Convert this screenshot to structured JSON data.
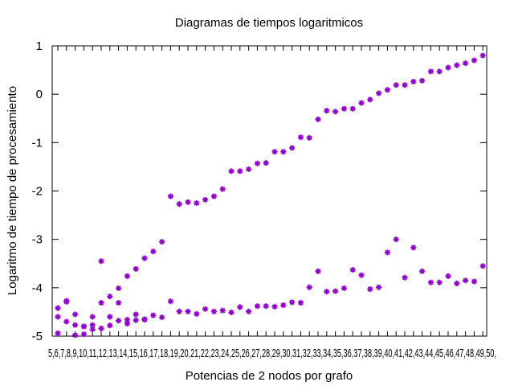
{
  "chart_data": {
    "type": "scatter",
    "title": "Diagramas de tiempos logaritmicos",
    "xlabel": "Potencias de 2 nodos por grafo",
    "ylabel": "Logaritmo de tiempo de procesamiento",
    "ylim": [
      -5,
      1
    ],
    "yticks": [
      -5,
      -4,
      -3,
      -2,
      -1,
      0,
      1
    ],
    "grid": false,
    "legend": "none",
    "color": "#9400d3",
    "xtick_text": "5,6,7,8,9,10,11,12,13,14,15,16,17,18,19,20,21,22,23,24,25,26,27,28,29,30,31,32,33,34,35,36,37,38,39,40,41,42,43,44,45,46,47,48,49,50,",
    "series": [
      {
        "values": [
          -4.42,
          -4.27,
          -4.55,
          -4.8,
          -4.6,
          -3.45,
          -4.18,
          -4.01,
          -3.76,
          -3.61,
          -3.39,
          -3.25,
          -3.05,
          -2.11,
          -2.27,
          -2.23,
          -2.25,
          -2.18,
          -2.11,
          -1.96,
          -1.59,
          -1.59,
          -1.55,
          -1.43,
          -1.42,
          -1.19,
          -1.19,
          -1.11,
          -0.89,
          -0.9,
          -0.52,
          -0.34,
          -0.36,
          -0.3,
          -0.3,
          -0.18,
          -0.11,
          0.02,
          0.09,
          0.19,
          0.19,
          0.26,
          0.28,
          0.47,
          0.47,
          0.55,
          0.6,
          0.64,
          0.7,
          0.8
        ]
      },
      {
        "values": [
          -4.6,
          -4.7,
          -4.77,
          -4.8,
          -4.77,
          -4.31,
          -4.6,
          -4.31,
          -4.66,
          -4.55,
          -4.66,
          -4.57,
          -4.61,
          -4.28,
          -4.49,
          -4.49,
          -4.54,
          -4.44,
          -4.49,
          -4.47,
          -4.51,
          -4.4,
          -4.49,
          -4.38,
          -4.38,
          -4.39,
          -4.36,
          -4.3,
          -4.31,
          -3.99,
          -3.66,
          -4.08,
          -4.07,
          -4.01,
          -3.63,
          -3.74,
          -4.03,
          -3.99,
          -3.27,
          -3.0,
          -3.79,
          -3.17,
          -3.66,
          -3.89,
          -3.89,
          -3.76,
          -3.91,
          -3.85,
          -3.87,
          -3.55
        ]
      },
      {
        "values": [
          -4.94,
          -4.29,
          -4.98,
          -4.96,
          -4.86,
          -4.84,
          -4.78,
          -4.68,
          -4.74,
          -4.67,
          -4.65
        ]
      }
    ]
  }
}
